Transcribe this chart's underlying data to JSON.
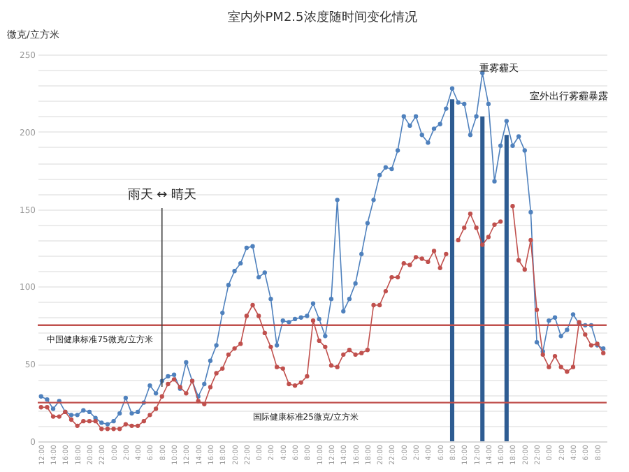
{
  "chart_data": {
    "type": "line",
    "title": "室内外PM2.5浓度随时间变化情况",
    "ylabel": "微克/立方米",
    "categories": [
      "12:00",
      null,
      "14:00",
      null,
      "16:00",
      null,
      "18:00",
      null,
      "20:00",
      null,
      "22:00",
      null,
      "0:00",
      null,
      "2:00",
      null,
      "4:00",
      null,
      "6:00",
      null,
      "8:00",
      null,
      "10:00",
      null,
      "12:00",
      null,
      "14:00",
      null,
      "16:00",
      null,
      "18:00",
      null,
      "20:00",
      null,
      "22:00",
      null,
      "0:00",
      null,
      "2:00",
      null,
      "4:00",
      null,
      "6:00",
      null,
      "8:00",
      null,
      "10:00",
      null,
      "12:00",
      null,
      "14:00",
      null,
      "16:00",
      null,
      "18:00",
      null,
      "20:00",
      null,
      "22:00",
      null,
      "0:00",
      null,
      "2:00",
      null,
      "4:00",
      null,
      "6:00",
      null,
      "8:00",
      null,
      "10:00",
      null,
      "12:00",
      null,
      "14:00",
      null,
      "16:00",
      null,
      "18:00",
      null,
      "20:00",
      null,
      "22:00",
      null,
      "0:00",
      null,
      "2:00",
      null,
      "4:00",
      null,
      "6:00",
      null,
      "8:00",
      null
    ],
    "series": [
      {
        "type": "bar",
        "color": "#2e5c92",
        "values": [
          null,
          null,
          null,
          null,
          null,
          null,
          null,
          null,
          null,
          null,
          null,
          null,
          null,
          null,
          null,
          null,
          null,
          null,
          null,
          null,
          null,
          null,
          null,
          null,
          null,
          null,
          null,
          null,
          null,
          null,
          null,
          null,
          null,
          null,
          null,
          null,
          null,
          null,
          null,
          null,
          null,
          null,
          null,
          null,
          null,
          null,
          null,
          null,
          null,
          null,
          null,
          null,
          null,
          null,
          null,
          null,
          null,
          null,
          null,
          null,
          null,
          null,
          null,
          null,
          null,
          null,
          null,
          null,
          221,
          null,
          null,
          null,
          null,
          210,
          null,
          null,
          null,
          198,
          null,
          null,
          null,
          null,
          null,
          null,
          null,
          null,
          null,
          null,
          null,
          null,
          null,
          null,
          null,
          null
        ]
      },
      {
        "color": "#4f81bd",
        "values": [
          29,
          27,
          21,
          26,
          19,
          17,
          17,
          20,
          19,
          15,
          12,
          11,
          13,
          18,
          28,
          18,
          19,
          25,
          36,
          31,
          39,
          42,
          43,
          34,
          51,
          39,
          29,
          37,
          52,
          62,
          83,
          101,
          110,
          115,
          125,
          126,
          106,
          109,
          92,
          62,
          78,
          77,
          79,
          80,
          81,
          89,
          79,
          68,
          92,
          156,
          84,
          92,
          102,
          121,
          141,
          156,
          172,
          177,
          176,
          188,
          210,
          204,
          210,
          198,
          193,
          202,
          205,
          215,
          228,
          219,
          218,
          198,
          210,
          238,
          218,
          168,
          191,
          207,
          191,
          197,
          188,
          148,
          64,
          58,
          78,
          80,
          68,
          72,
          82,
          76,
          75,
          75,
          62,
          60
        ]
      },
      {
        "color": "#c0504d",
        "values": [
          22,
          22,
          16,
          16,
          19,
          14,
          10,
          13,
          13,
          13,
          8,
          8,
          8,
          8,
          11,
          10,
          10,
          13,
          17,
          21,
          29,
          37,
          40,
          35,
          31,
          39,
          26,
          24,
          35,
          44,
          47,
          56,
          60,
          63,
          81,
          88,
          81,
          70,
          61,
          48,
          47,
          37,
          36,
          38,
          42,
          78,
          65,
          61,
          49,
          48,
          56,
          59,
          56,
          57,
          59,
          88,
          88,
          97,
          106,
          106,
          115,
          114,
          119,
          118,
          116,
          123,
          112,
          121,
          null,
          130,
          138,
          147,
          138,
          127,
          132,
          140,
          142,
          null,
          152,
          117,
          111,
          130,
          85,
          56,
          48,
          55,
          48,
          45,
          48,
          77,
          69,
          62,
          63,
          57
        ]
      }
    ],
    "ylim": [
      0,
      250
    ],
    "yticks": [
      0,
      {
        "value": 10,
        "label": null
      },
      {
        "value": 20,
        "label": null
      },
      {
        "value": 30,
        "label": null
      },
      {
        "value": 40,
        "label": null
      },
      50,
      {
        "value": 60,
        "label": null
      },
      {
        "value": 70,
        "label": null
      },
      {
        "value": 80,
        "label": null
      },
      {
        "value": 90,
        "label": null
      },
      100,
      {
        "value": 110,
        "label": null
      },
      {
        "value": 120,
        "label": null
      },
      {
        "value": 130,
        "label": null
      },
      {
        "value": 140,
        "label": null
      },
      150,
      {
        "value": 160,
        "label": null
      },
      {
        "value": 170,
        "label": null
      },
      {
        "value": 180,
        "label": null
      },
      {
        "value": 190,
        "label": null
      },
      200,
      {
        "value": 210,
        "label": null
      },
      {
        "value": 220,
        "label": null
      },
      {
        "value": 230,
        "label": null
      },
      {
        "value": 240,
        "label": null
      },
      250
    ],
    "grid": "y",
    "marker": "circle",
    "line_style": "solid",
    "ref_lines": [
      {
        "axis": "y",
        "value": 75,
        "label": "中国健康标准75微克/立方米",
        "color": "#c0504d"
      },
      {
        "axis": "y",
        "value": 25,
        "label": "国际健康标准25微克/立方米",
        "color": "#c0504d"
      },
      {
        "axis": "x",
        "value": "8:00",
        "label": null,
        "color": "#404040"
      }
    ],
    "annotations": [
      "重雾霾天",
      "室外出行雾霾暴露",
      "雨天 ↔ 晴天"
    ]
  }
}
